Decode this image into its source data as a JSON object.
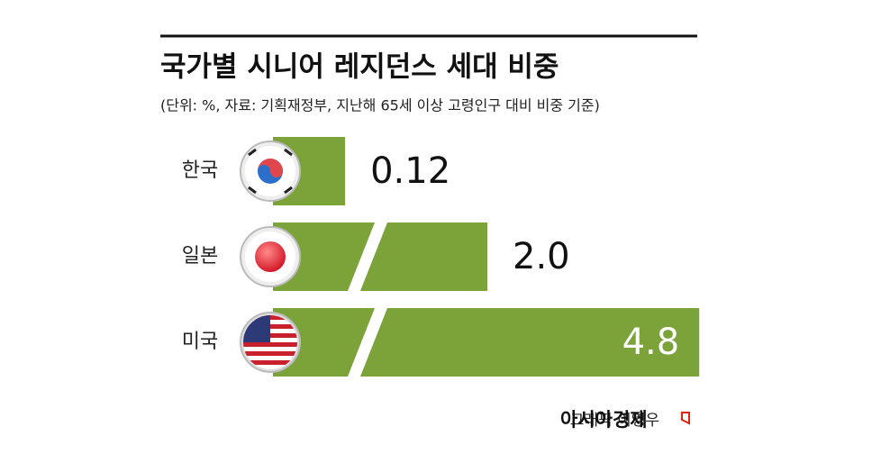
{
  "chart_data": {
    "type": "bar",
    "title": "국가별 시니어 레지던스 세대 비중",
    "subtitle": "(단위: %, 자료: 기획재정부, 지난해 65세 이상 고령인구 대비 비중 기준)",
    "categories": [
      "한국",
      "일본",
      "미국"
    ],
    "values": [
      0.12,
      2,
      4.8
    ],
    "value_labels": [
      "0.12",
      "2.0",
      "4.8"
    ],
    "color": "#7ba33a",
    "credit": "그래픽 이영우",
    "publisher": "아시아경제"
  }
}
